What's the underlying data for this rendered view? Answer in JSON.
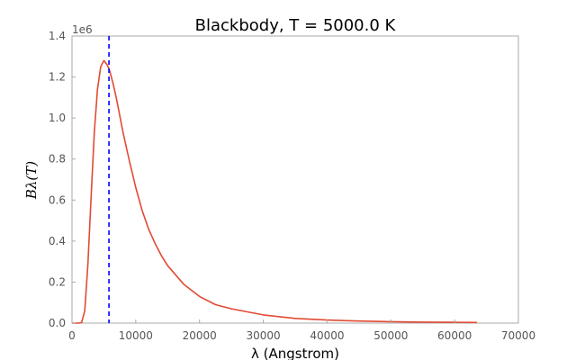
{
  "chart_data": {
    "type": "line",
    "title": "Blackbody, T = 5000.0 K",
    "xlabel": "λ (Angstrom)",
    "ylabel": "Bλ(T)",
    "y_offset_label": "1e6",
    "xlim": [
      0,
      70000
    ],
    "ylim": [
      0,
      1.4
    ],
    "x_ticks": [
      0,
      10000,
      20000,
      30000,
      40000,
      50000,
      60000,
      70000
    ],
    "x_tick_labels": [
      "0",
      "10000",
      "20000",
      "30000",
      "40000",
      "50000",
      "60000",
      "70000"
    ],
    "y_ticks": [
      0.0,
      0.2,
      0.4,
      0.6,
      0.8,
      1.0,
      1.2,
      1.4
    ],
    "y_tick_labels": [
      "0.0",
      "0.2",
      "0.4",
      "0.6",
      "0.8",
      "1.0",
      "1.2",
      "1.4"
    ],
    "grid": false,
    "series": [
      {
        "color": "#e24a33",
        "x": [
          0,
          1000,
          1500,
          2000,
          2500,
          3000,
          3500,
          4000,
          4500,
          5000,
          5500,
          5800,
          6000,
          6500,
          7000,
          8000,
          9000,
          10000,
          11000,
          12000,
          13000,
          14000,
          15000,
          17500,
          20000,
          22500,
          25000,
          30000,
          35000,
          40000,
          45000,
          50000,
          55000,
          60000,
          63500
        ],
        "y": [
          0,
          0,
          0.002,
          0.06,
          0.29,
          0.62,
          0.93,
          1.14,
          1.25,
          1.28,
          1.26,
          1.24,
          1.22,
          1.16,
          1.09,
          0.93,
          0.79,
          0.66,
          0.55,
          0.46,
          0.39,
          0.33,
          0.28,
          0.19,
          0.13,
          0.09,
          0.07,
          0.04,
          0.023,
          0.015,
          0.01,
          0.007,
          0.005,
          0.004,
          0.003
        ]
      }
    ],
    "peak_marker": {
      "x": 5796,
      "color": "#0000ff",
      "style": "dashed"
    }
  }
}
